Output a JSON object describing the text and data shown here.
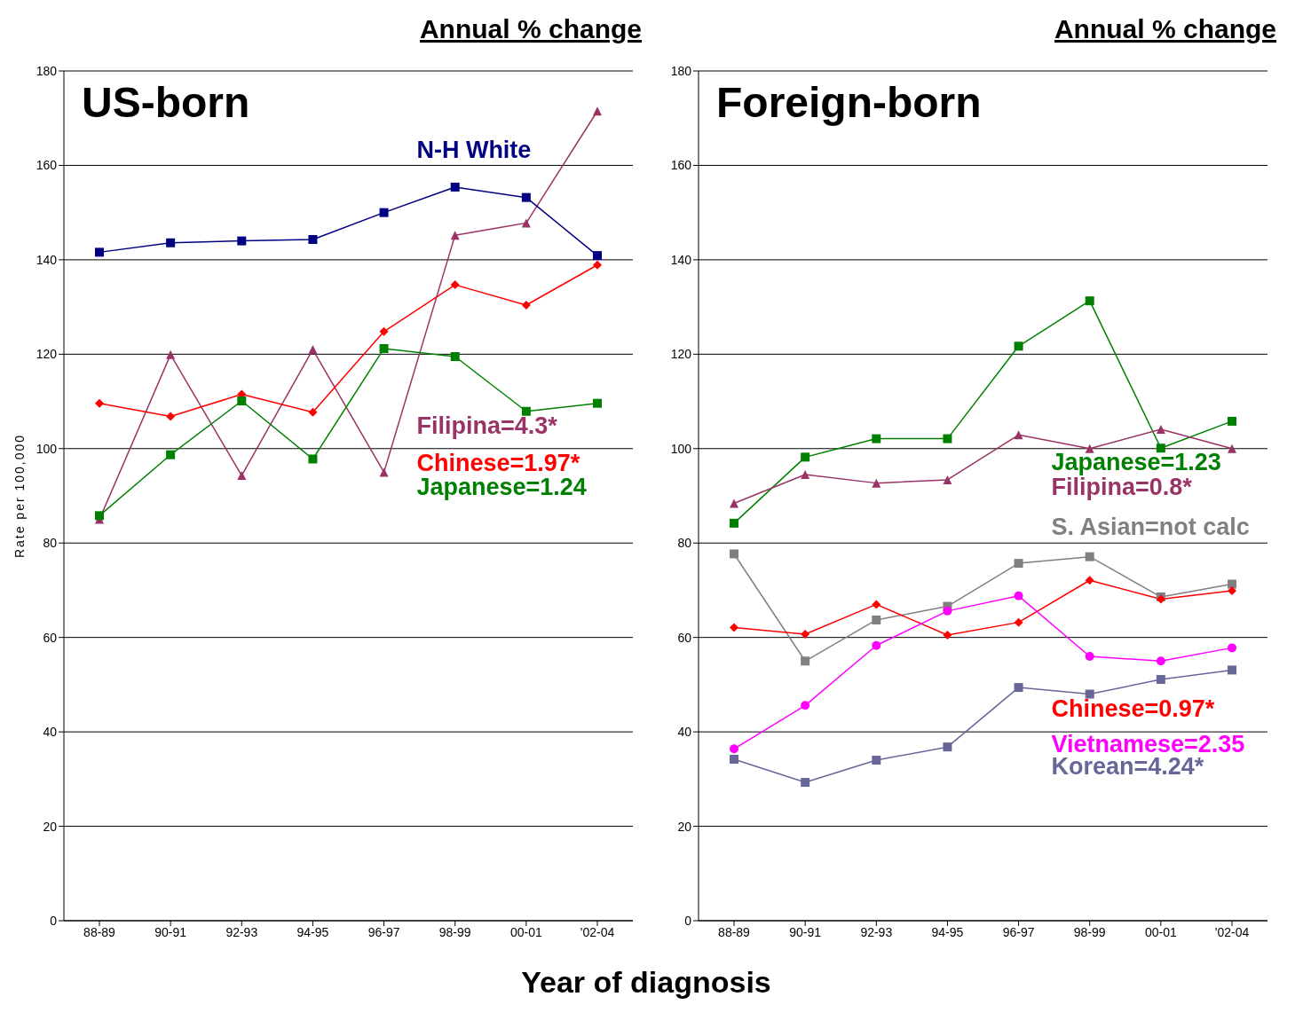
{
  "chart_data": [
    {
      "type": "line",
      "title": "US-born",
      "xlabel": "Year of diagnosis",
      "ylabel": "Rate per 100,000",
      "annotations": [
        "Annual % change"
      ],
      "categories": [
        "88-89",
        "90-91",
        "92-93",
        "94-95",
        "96-97",
        "98-99",
        "00-01",
        "'02-04"
      ],
      "ylim": [
        0,
        180
      ],
      "yticks": [
        0,
        20,
        40,
        60,
        80,
        100,
        120,
        140,
        160,
        180
      ],
      "grid": "y",
      "legend": false,
      "series": [
        {
          "name": "Filipina=4.3*",
          "color": "#993366",
          "marker": "triangle",
          "values": [
            85,
            119.9,
            94.3,
            121,
            95,
            145.2,
            147.8,
            171.5
          ]
        },
        {
          "name": "N-H White",
          "color": "#000080",
          "marker": "square",
          "values": [
            141.6,
            143.6,
            144,
            144.3,
            150,
            155.4,
            153.2,
            140.9
          ]
        },
        {
          "name": "Chinese=1.97*",
          "color": "#ff0000",
          "marker": "diamond",
          "values": [
            109.6,
            106.8,
            111.5,
            107.7,
            124.8,
            134.7,
            130.4,
            138.9
          ]
        },
        {
          "name": "Japanese=1.24",
          "color": "#008000",
          "marker": "square",
          "values": [
            85.8,
            98.7,
            110.1,
            97.8,
            121.2,
            119.5,
            107.9,
            109.6
          ]
        }
      ]
    },
    {
      "type": "line",
      "title": "Foreign-born",
      "annotations": [
        "Annual % change"
      ],
      "categories": [
        "88-89",
        "90-91",
        "92-93",
        "94-95",
        "96-97",
        "98-99",
        "00-01",
        "'02-04"
      ],
      "ylim": [
        0,
        180
      ],
      "yticks": [
        0,
        20,
        40,
        60,
        80,
        100,
        120,
        140,
        160,
        180
      ],
      "grid": "y",
      "legend": false,
      "series": [
        {
          "name": "Japanese=1.23",
          "color": "#008000",
          "marker": "square",
          "values": [
            84.2,
            98.2,
            102.1,
            102.1,
            121.7,
            131.3,
            100.1,
            105.8
          ]
        },
        {
          "name": "Filipina=0.8*",
          "color": "#993366",
          "marker": "triangle",
          "values": [
            88.4,
            94.5,
            92.7,
            93.4,
            102.9,
            100,
            104.1,
            100
          ]
        },
        {
          "name": "S. Asian=not calc",
          "color": "#808080",
          "marker": "square",
          "values": [
            77.7,
            55,
            63.7,
            66.6,
            75.7,
            77.1,
            68.6,
            71.3
          ]
        },
        {
          "name": "Chinese=0.97*",
          "color": "#ff0000",
          "marker": "diamond",
          "values": [
            62.1,
            60.7,
            67,
            60.5,
            63.2,
            72.1,
            68.1,
            69.9
          ]
        },
        {
          "name": "Vietnamese=2.35",
          "color": "#ff00ff",
          "marker": "circle",
          "values": [
            36.4,
            45.6,
            58.3,
            65.6,
            68.8,
            56,
            55,
            57.8
          ]
        },
        {
          "name": "Korean=4.24*",
          "color": "#666699",
          "marker": "square",
          "values": [
            34.2,
            29.3,
            34,
            36.8,
            49.4,
            48,
            51.1,
            53.1
          ]
        }
      ]
    }
  ]
}
